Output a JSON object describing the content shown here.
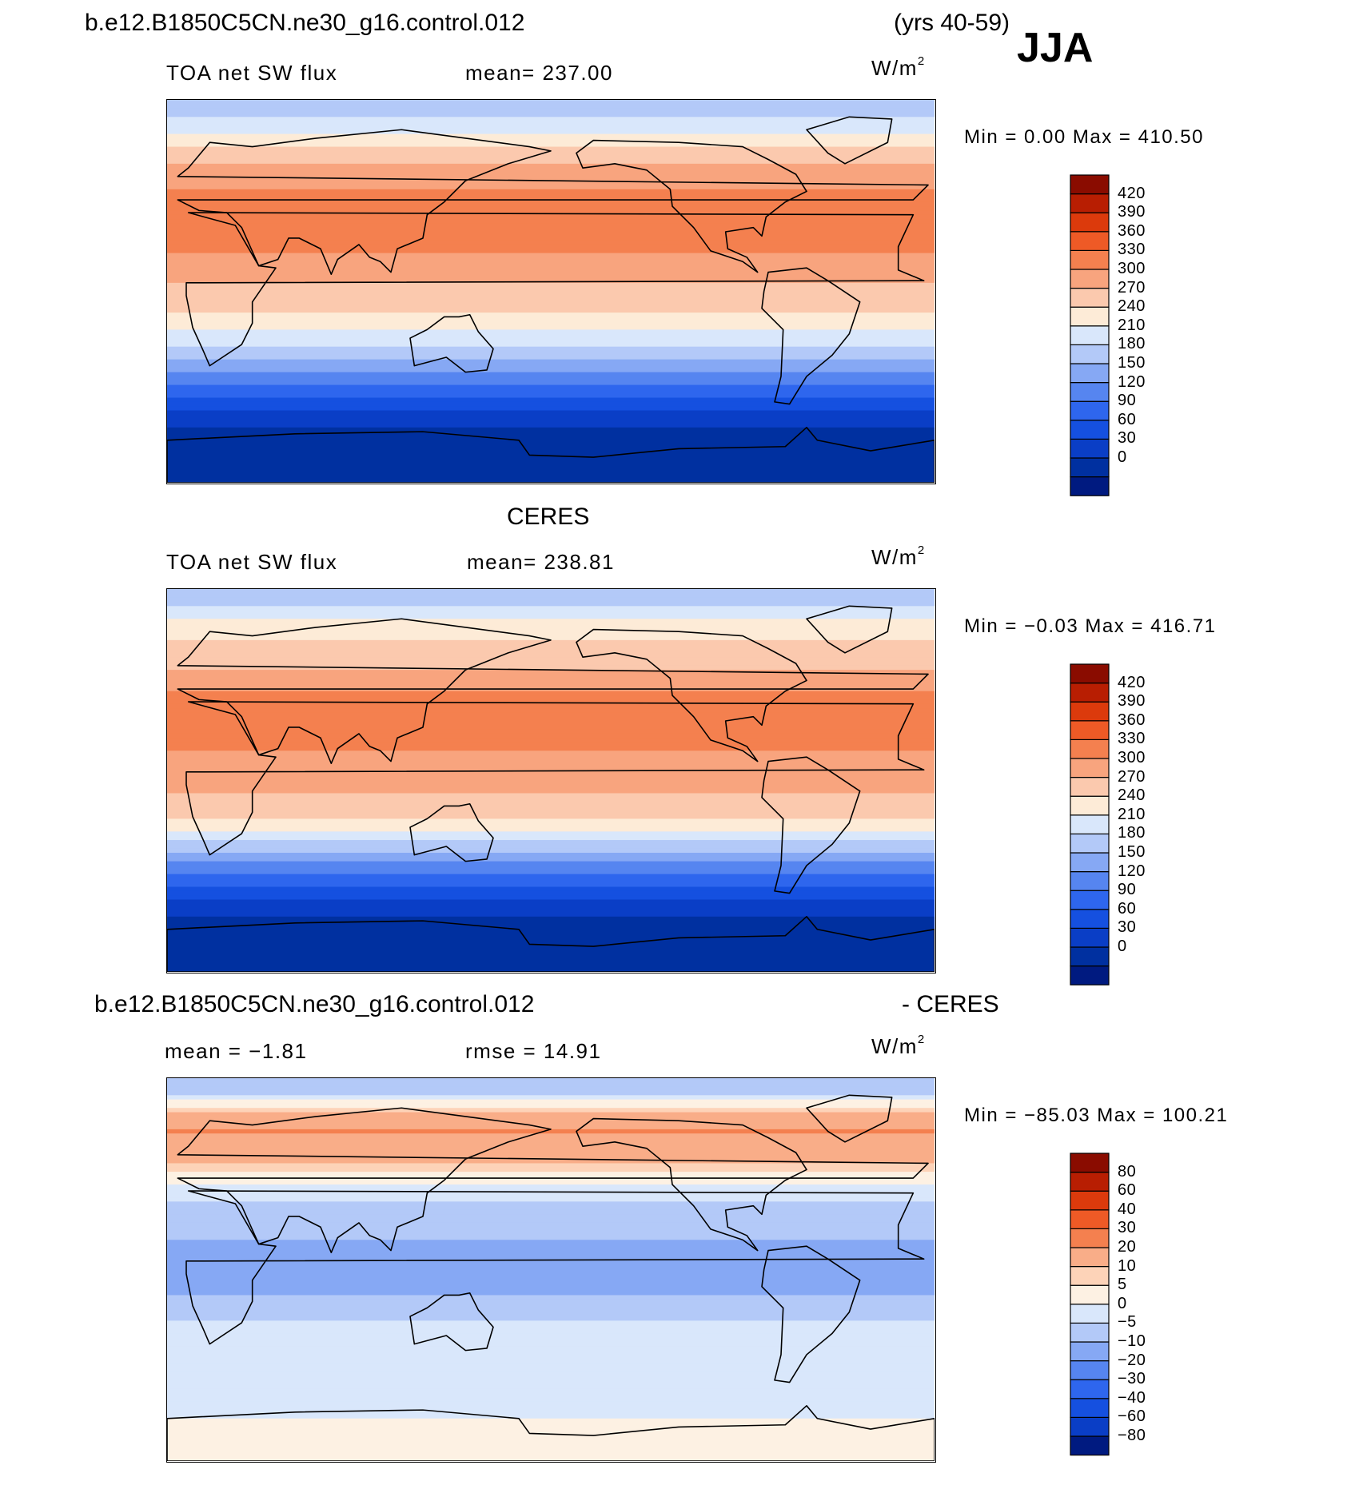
{
  "header": {
    "case_name": "b.e12.B1850C5CN.ne30_g16.control.012",
    "years": "(yrs 40-59)",
    "season": "JJA"
  },
  "obs_title": "CERES",
  "diff_title": {
    "case_name": "b.e12.B1850C5CN.ne30_g16.control.012",
    "suffix": "- CERES"
  },
  "units": {
    "base": "W/m",
    "exp": "2"
  },
  "colors": {
    "abs_scale": [
      "#001a80",
      "#0030a0",
      "#0a3ec6",
      "#1550e0",
      "#2e66ee",
      "#5685f0",
      "#86a8f4",
      "#b3c9f8",
      "#d9e7fb",
      "#fdebd7",
      "#fbc9ae",
      "#f8a47e",
      "#f4804f",
      "#ee5a26",
      "#dc3a0c",
      "#b81e02",
      "#8a0c00"
    ],
    "diff_scale": [
      "#001a80",
      "#0a3ec6",
      "#1550e0",
      "#2e66ee",
      "#5685f0",
      "#86a8f4",
      "#b3c9f8",
      "#d9e7fb",
      "#fdf1e3",
      "#fdd3b8",
      "#f9ad88",
      "#f4804f",
      "#ee5a26",
      "#dc3a0c",
      "#b81e02",
      "#8a0c00"
    ]
  },
  "chart_data": [
    {
      "type": "heatmap",
      "panel": "model",
      "field_label": "TOA net SW flux",
      "mean_label": "mean= 237.00",
      "minmax_label": "Min =    0.00 Max = 410.50",
      "min": 0.0,
      "max": 410.5,
      "levels": [
        420,
        390,
        360,
        330,
        300,
        270,
        240,
        210,
        180,
        150,
        120,
        90,
        60,
        30,
        0
      ],
      "lat_bands": [
        {
          "lat": 85,
          "value": 195
        },
        {
          "lat": 75,
          "value": 235
        },
        {
          "lat": 65,
          "value": 290
        },
        {
          "lat": 55,
          "value": 310
        },
        {
          "lat": 45,
          "value": 340
        },
        {
          "lat": 35,
          "value": 355
        },
        {
          "lat": 25,
          "value": 345
        },
        {
          "lat": 15,
          "value": 320
        },
        {
          "lat": 5,
          "value": 300
        },
        {
          "lat": -5,
          "value": 280
        },
        {
          "lat": -15,
          "value": 255
        },
        {
          "lat": -25,
          "value": 215
        },
        {
          "lat": -35,
          "value": 165
        },
        {
          "lat": -45,
          "value": 110
        },
        {
          "lat": -55,
          "value": 60
        },
        {
          "lat": -65,
          "value": 25
        },
        {
          "lat": -75,
          "value": 10
        },
        {
          "lat": -85,
          "value": 5
        }
      ]
    },
    {
      "type": "heatmap",
      "panel": "obs",
      "field_label": "TOA net SW flux",
      "mean_label": "mean= 238.81",
      "minmax_label": "Min =  −0.03 Max = 416.71",
      "min": -0.03,
      "max": 416.71,
      "levels": [
        420,
        390,
        360,
        330,
        300,
        270,
        240,
        210,
        180,
        150,
        120,
        90,
        60,
        30,
        0
      ],
      "lat_bands": [
        {
          "lat": 85,
          "value": 200
        },
        {
          "lat": 75,
          "value": 240
        },
        {
          "lat": 65,
          "value": 270
        },
        {
          "lat": 55,
          "value": 290
        },
        {
          "lat": 45,
          "value": 320
        },
        {
          "lat": 35,
          "value": 350
        },
        {
          "lat": 25,
          "value": 355
        },
        {
          "lat": 15,
          "value": 335
        },
        {
          "lat": 5,
          "value": 300
        },
        {
          "lat": -5,
          "value": 300
        },
        {
          "lat": -15,
          "value": 280
        },
        {
          "lat": -25,
          "value": 230
        },
        {
          "lat": -35,
          "value": 170
        },
        {
          "lat": -45,
          "value": 110
        },
        {
          "lat": -55,
          "value": 60
        },
        {
          "lat": -65,
          "value": 25
        },
        {
          "lat": -75,
          "value": 10
        },
        {
          "lat": -85,
          "value": 5
        }
      ]
    },
    {
      "type": "heatmap",
      "panel": "diff",
      "field_label": "mean =   −1.81",
      "mean_label": "rmse =   14.91",
      "minmax_label": "Min = −85.03 Max = 100.21",
      "min": -85.03,
      "max": 100.21,
      "levels": [
        "80",
        "60",
        "40",
        "30",
        "20",
        "10",
        "5",
        "0",
        "−5",
        "−10",
        "−20",
        "−30",
        "−40",
        "−60",
        "−80"
      ],
      "level_values": [
        80,
        60,
        40,
        30,
        20,
        10,
        5,
        0,
        -5,
        -10,
        -20,
        -30,
        -40,
        -60,
        -80
      ],
      "lat_bands": [
        {
          "lat": 85,
          "value": -10
        },
        {
          "lat": 75,
          "value": 8
        },
        {
          "lat": 65,
          "value": 20
        },
        {
          "lat": 55,
          "value": 15
        },
        {
          "lat": 45,
          "value": 4
        },
        {
          "lat": 35,
          "value": -4
        },
        {
          "lat": 25,
          "value": -8
        },
        {
          "lat": 15,
          "value": -10
        },
        {
          "lat": 5,
          "value": -15
        },
        {
          "lat": -5,
          "value": -18
        },
        {
          "lat": -15,
          "value": -8
        },
        {
          "lat": -25,
          "value": -5
        },
        {
          "lat": -35,
          "value": -3
        },
        {
          "lat": -45,
          "value": -2
        },
        {
          "lat": -55,
          "value": -3
        },
        {
          "lat": -65,
          "value": -4
        },
        {
          "lat": -75,
          "value": 3
        },
        {
          "lat": -85,
          "value": 3
        }
      ]
    }
  ]
}
